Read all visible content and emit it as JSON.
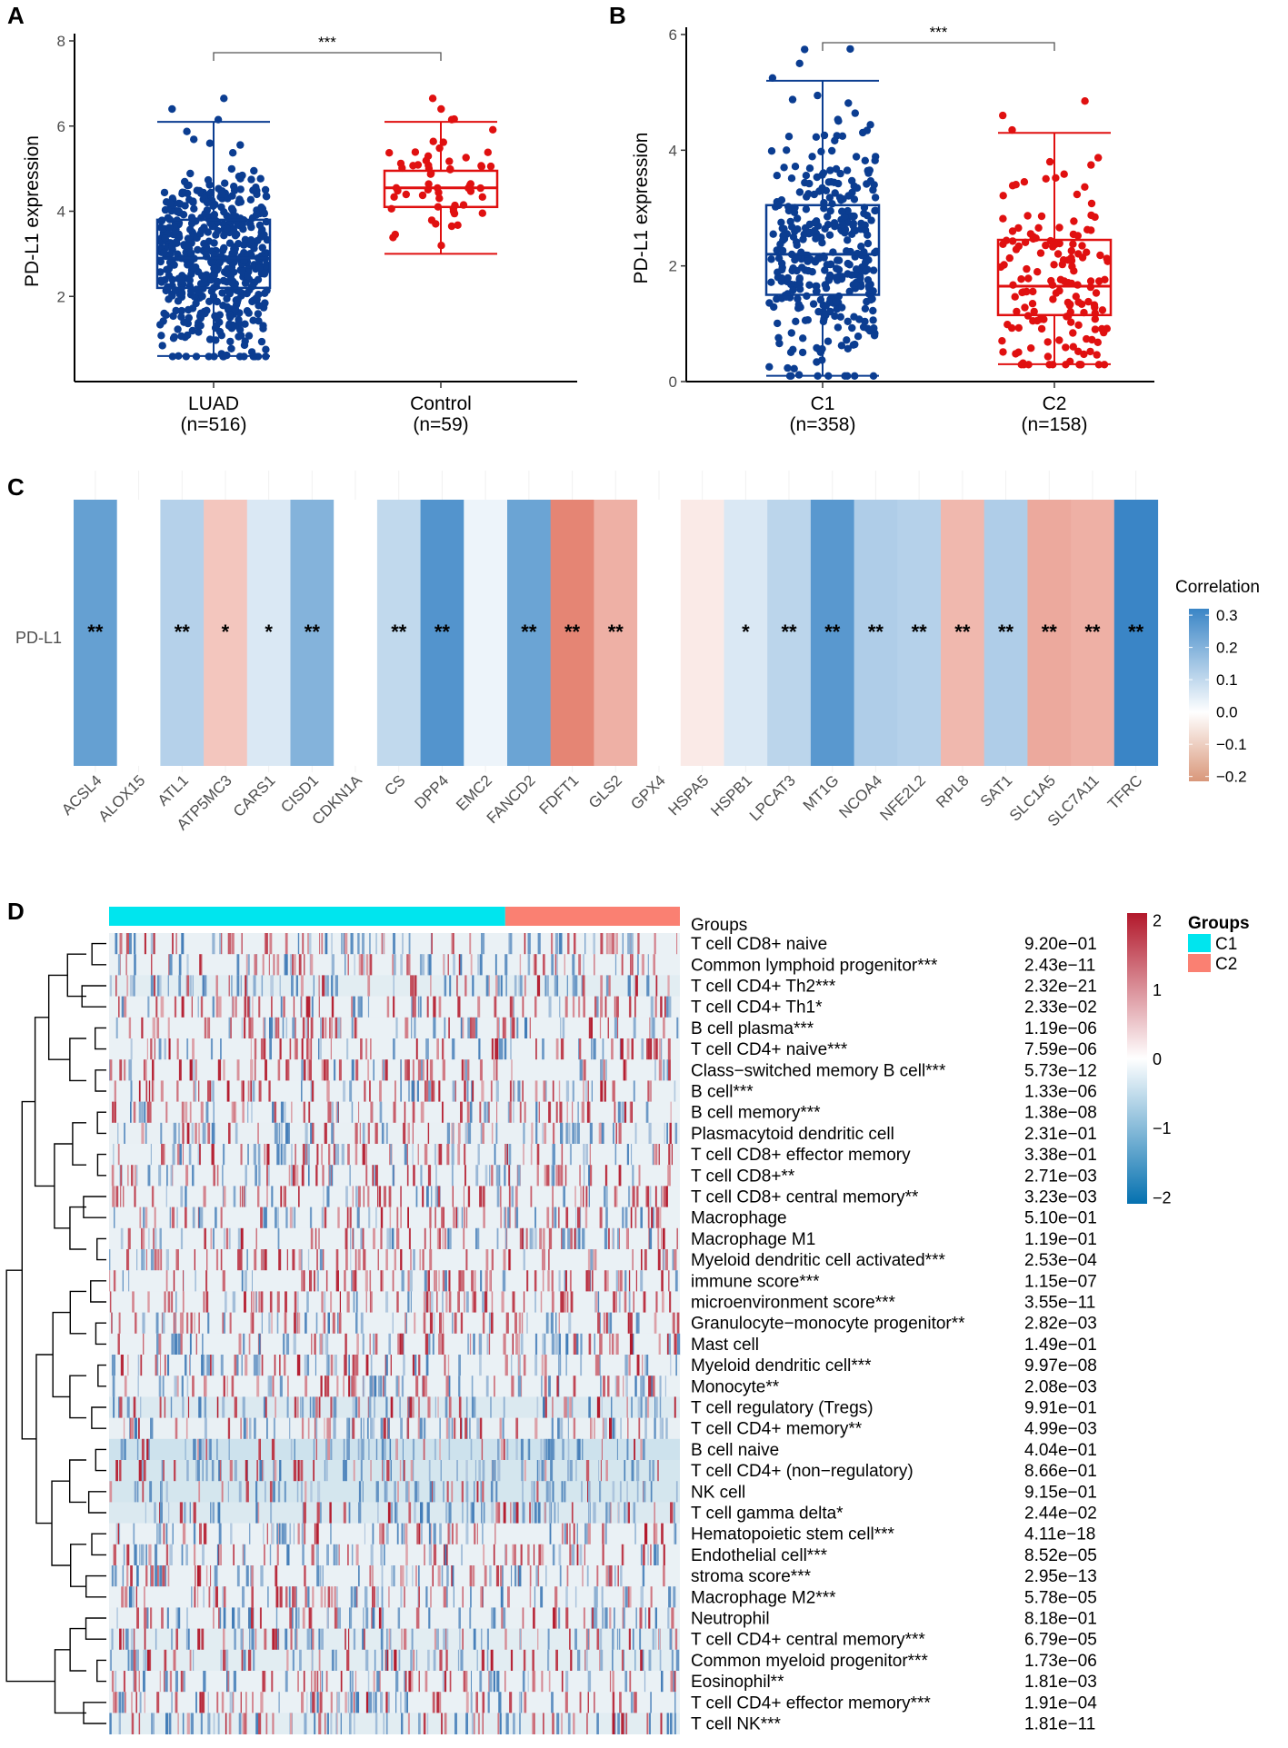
{
  "chart_data": [
    {
      "panel": "A",
      "type": "box",
      "ylabel": "PD-L1 expression",
      "ylim": [
        0,
        8
      ],
      "yticks": [
        "2",
        "4",
        "6",
        "8"
      ],
      "significance": "***",
      "groups": [
        {
          "name": "LUAD",
          "n_label": "(n=516)",
          "color": "#0b3d91",
          "n": 516,
          "min": 0.6,
          "q1": 2.2,
          "median": 2.9,
          "q3": 3.8,
          "max": 6.1
        },
        {
          "name": "Control",
          "n_label": "(n=59)",
          "color": "#e01010",
          "n": 59,
          "min": 3.0,
          "q1": 4.1,
          "median": 4.55,
          "q3": 4.95,
          "max": 6.1
        }
      ]
    },
    {
      "panel": "B",
      "type": "box",
      "ylabel": "PD-L1 expression",
      "ylim": [
        0,
        6
      ],
      "yticks": [
        "0",
        "2",
        "4",
        "6"
      ],
      "significance": "***",
      "groups": [
        {
          "name": "C1",
          "n_label": "(n=358)",
          "color": "#0b3d91",
          "n": 358,
          "min": 0.1,
          "q1": 1.5,
          "median": 2.2,
          "q3": 3.05,
          "max": 5.2
        },
        {
          "name": "C2",
          "n_label": "(n=158)",
          "color": "#e01010",
          "n": 158,
          "min": 0.3,
          "q1": 1.15,
          "median": 1.65,
          "q3": 2.45,
          "max": 4.3
        }
      ]
    },
    {
      "panel": "C",
      "type": "heatmap",
      "row_label": "PD-L1",
      "legend_title": "Correlation",
      "legend_ticks": [
        "0.3",
        "0.2",
        "0.1",
        "0.0",
        "−0.1",
        "−0.2"
      ],
      "scale": [
        -0.2,
        0.3
      ],
      "genes": [
        "ACSL4",
        "ALOX15",
        "ATL1",
        "ATP5MC3",
        "CARS1",
        "CISD1",
        "CDKN1A",
        "CS",
        "DPP4",
        "EMC2",
        "FANCD2",
        "FDFT1",
        "GLS2",
        "GPX4",
        "HSPA5",
        "HSPB1",
        "LPCAT3",
        "MT1G",
        "NCOA4",
        "NFE2L2",
        "RPL8",
        "SAT1",
        "SLC1A5",
        "SLC7A11",
        "TFRC"
      ],
      "values": [
        0.25,
        0.0,
        0.12,
        -0.08,
        0.06,
        0.2,
        0.0,
        0.1,
        0.28,
        0.03,
        0.24,
        -0.17,
        -0.11,
        0.0,
        -0.03,
        0.06,
        0.11,
        0.27,
        0.13,
        0.12,
        -0.1,
        0.13,
        -0.12,
        -0.11,
        0.32
      ],
      "stars": [
        "**",
        "",
        "**",
        "*",
        "*",
        "**",
        "",
        "**",
        "**",
        "",
        "**",
        "**",
        "**",
        "",
        "",
        "*",
        "**",
        "**",
        "**",
        "**",
        "**",
        "**",
        "**",
        "**",
        "**"
      ]
    },
    {
      "panel": "D",
      "type": "heatmap",
      "top_annotation_label": "Groups",
      "groups_legend_title": "Groups",
      "groups_legend": [
        {
          "label": "C1",
          "color": "#00e5ee"
        },
        {
          "label": "C2",
          "color": "#fa8072"
        }
      ],
      "group_split_fraction": 0.694,
      "color_legend_ticks": [
        "2",
        "1",
        "0",
        "−1",
        "−2"
      ],
      "scale": [
        -2,
        2
      ],
      "rows": [
        {
          "name": "T cell CD8+ naive",
          "p": "9.20e−01"
        },
        {
          "name": "Common lymphoid progenitor***",
          "p": "2.43e−11"
        },
        {
          "name": "T cell CD4+ Th2***",
          "p": "2.32e−21"
        },
        {
          "name": "T cell CD4+ Th1*",
          "p": "2.33e−02"
        },
        {
          "name": "B cell plasma***",
          "p": "1.19e−06"
        },
        {
          "name": "T cell CD4+ naive***",
          "p": "7.59e−06"
        },
        {
          "name": "Class−switched memory B cell***",
          "p": "5.73e−12"
        },
        {
          "name": "B cell***",
          "p": "1.33e−06"
        },
        {
          "name": "B cell memory***",
          "p": "1.38e−08"
        },
        {
          "name": "Plasmacytoid dendritic cell",
          "p": "2.31e−01"
        },
        {
          "name": "T cell CD8+ effector memory",
          "p": "3.38e−01"
        },
        {
          "name": "T cell CD8+**",
          "p": "2.71e−03"
        },
        {
          "name": "T cell CD8+ central memory**",
          "p": "3.23e−03"
        },
        {
          "name": "Macrophage",
          "p": "5.10e−01"
        },
        {
          "name": "Macrophage M1",
          "p": "1.19e−01"
        },
        {
          "name": "Myeloid dendritic cell activated***",
          "p": "2.53e−04"
        },
        {
          "name": "immune score***",
          "p": "1.15e−07"
        },
        {
          "name": "microenvironment score***",
          "p": "3.55e−11"
        },
        {
          "name": "Granulocyte−monocyte progenitor**",
          "p": "2.82e−03"
        },
        {
          "name": "Mast cell",
          "p": "1.49e−01"
        },
        {
          "name": "Myeloid dendritic cell***",
          "p": "9.97e−08"
        },
        {
          "name": "Monocyte**",
          "p": "2.08e−03"
        },
        {
          "name": "T cell regulatory (Tregs)",
          "p": "9.91e−01"
        },
        {
          "name": "T cell CD4+ memory**",
          "p": "4.99e−03"
        },
        {
          "name": "B cell naive",
          "p": "4.04e−01"
        },
        {
          "name": "T cell CD4+ (non−regulatory)",
          "p": "8.66e−01"
        },
        {
          "name": "NK cell",
          "p": "9.15e−01"
        },
        {
          "name": "T cell gamma delta*",
          "p": "2.44e−02"
        },
        {
          "name": "Hematopoietic stem cell***",
          "p": "4.11e−18"
        },
        {
          "name": "Endothelial cell***",
          "p": "8.52e−05"
        },
        {
          "name": "stroma score***",
          "p": "2.95e−13"
        },
        {
          "name": "Macrophage M2***",
          "p": "5.78e−05"
        },
        {
          "name": "Neutrophil",
          "p": "8.18e−01"
        },
        {
          "name": "T cell CD4+ central memory***",
          "p": "6.79e−05"
        },
        {
          "name": "Common myeloid progenitor***",
          "p": "1.73e−06"
        },
        {
          "name": "Eosinophil**",
          "p": "1.81e−03"
        },
        {
          "name": "T cell CD4+ effector memory***",
          "p": "1.91e−04"
        },
        {
          "name": "T cell NK***",
          "p": "1.81e−11"
        }
      ]
    }
  ]
}
